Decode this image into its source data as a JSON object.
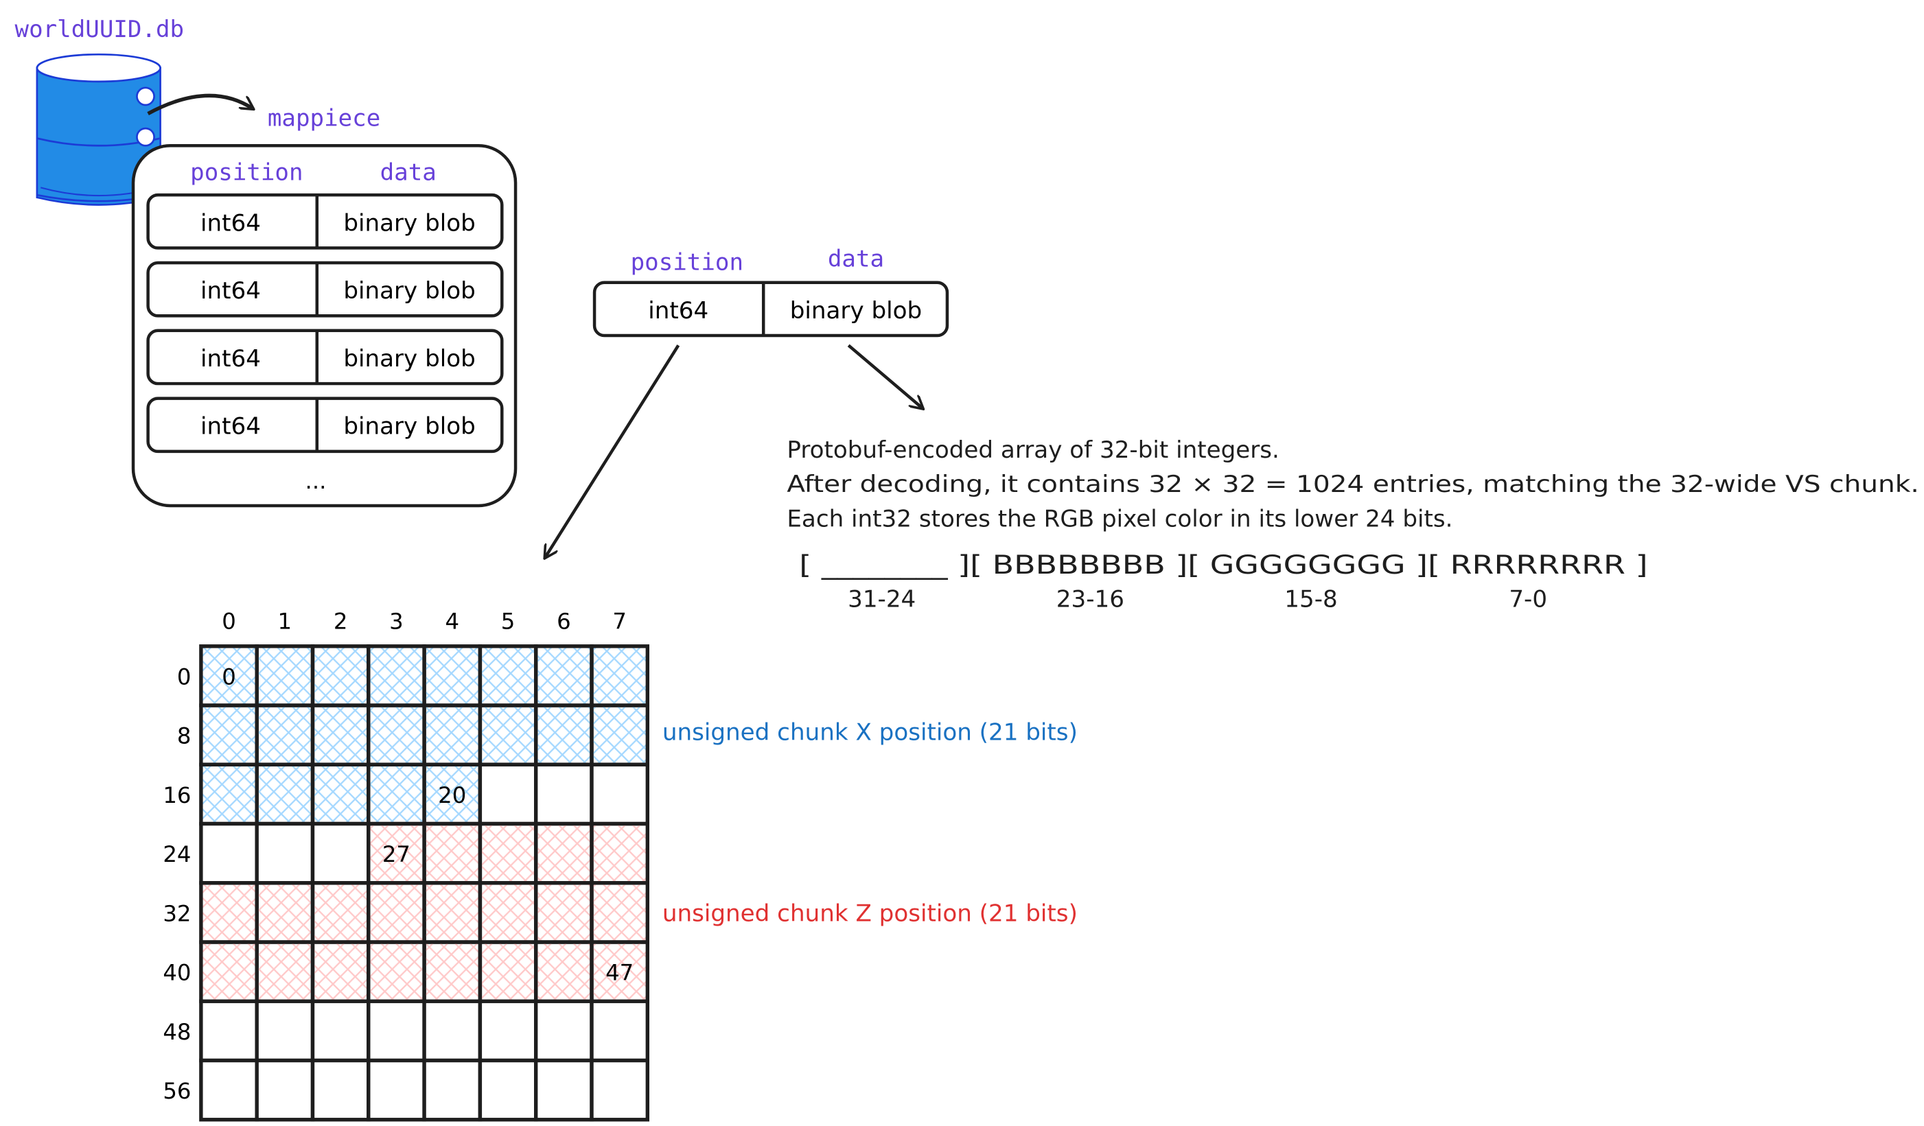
{
  "database": {
    "name": "worldUUID.db",
    "table_name": "mappiece",
    "icon": "database-icon",
    "color": "#228be6"
  },
  "table": {
    "headers": {
      "position": "position",
      "data": "data"
    },
    "rows": [
      {
        "position": "int64",
        "data": "binary blob"
      },
      {
        "position": "int64",
        "data": "binary blob"
      },
      {
        "position": "int64",
        "data": "binary blob"
      },
      {
        "position": "int64",
        "data": "binary blob"
      }
    ],
    "more": "..."
  },
  "record": {
    "headers": {
      "position": "position",
      "data": "data"
    },
    "position": "int64",
    "data": "binary blob"
  },
  "blob_description": {
    "lines": [
      "Protobuf-encoded array of 32-bit integers.",
      "After decoding, it contains 32 × 32 = 1024 entries, matching the 32-wide VS chunk.",
      "Each int32 stores the RGB pixel color in its lower 24 bits."
    ],
    "layout": "[ ________ ][ BBBBBBBB ][ GGGGGGGG ][ RRRRRRRR ]",
    "bit_ranges": [
      "31-24",
      "23-16",
      "15-8",
      "7-0"
    ]
  },
  "bit_grid": {
    "column_labels": [
      "0",
      "1",
      "2",
      "3",
      "4",
      "5",
      "6",
      "7"
    ],
    "row_labels": [
      "0",
      "8",
      "16",
      "24",
      "32",
      "40",
      "48",
      "56"
    ],
    "cell_labels": {
      "0": "0",
      "20": "20",
      "27": "27",
      "47": "47"
    },
    "regions": [
      {
        "label": "unsigned chunk X position (21 bits)",
        "from_bit": 0,
        "to_bit": 20,
        "color": "#a5d8ff",
        "text_color": "#1971c2"
      },
      {
        "label": "unsigned chunk Z position (21 bits)",
        "from_bit": 27,
        "to_bit": 47,
        "color": "#ffc9c9",
        "text_color": "#e03131"
      }
    ]
  }
}
